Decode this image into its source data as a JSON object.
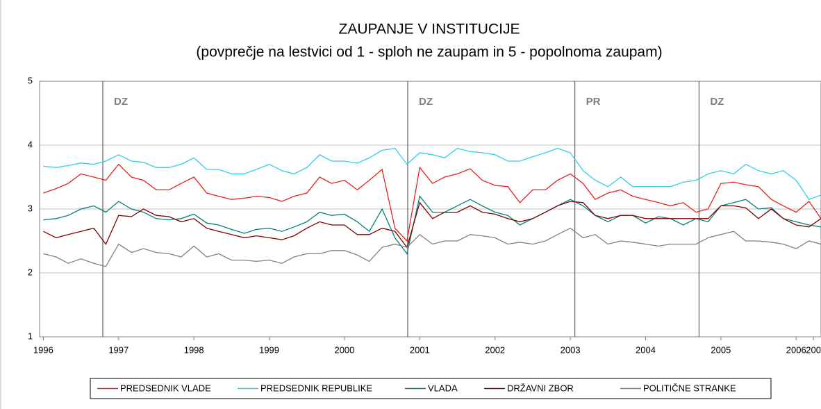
{
  "chart_data": {
    "type": "line",
    "title": "ZAUPANJE V INSTITUCIJE",
    "subtitle": "(povprečje na lestvici od 1 - sploh ne zaupam in 5 - popolnoma zaupam)",
    "x": [
      1996,
      1996.17,
      1996.33,
      1996.5,
      1996.67,
      1996.83,
      1997,
      1997.17,
      1997.33,
      1997.5,
      1997.67,
      1997.83,
      1998,
      1998.17,
      1998.33,
      1998.5,
      1998.67,
      1998.83,
      1999,
      1999.17,
      1999.33,
      1999.5,
      1999.67,
      1999.83,
      2000,
      2000.17,
      2000.33,
      2000.5,
      2000.67,
      2000.83,
      2001,
      2001.17,
      2001.33,
      2001.5,
      2001.67,
      2001.83,
      2002,
      2002.17,
      2002.33,
      2002.5,
      2002.67,
      2002.83,
      2003,
      2003.17,
      2003.33,
      2003.5,
      2003.67,
      2003.83,
      2004,
      2004.17,
      2004.33,
      2004.5,
      2004.67,
      2004.83,
      2005,
      2005.17,
      2005.33,
      2005.5,
      2005.67,
      2005.83,
      2006,
      2006.17,
      2006.33
    ],
    "series": [
      {
        "name": "PREDSEDNIK VLADE",
        "color": "#e8201c",
        "values": [
          3.25,
          3.32,
          3.4,
          3.55,
          3.5,
          3.45,
          3.7,
          3.5,
          3.45,
          3.3,
          3.3,
          3.4,
          3.5,
          3.25,
          3.2,
          3.15,
          3.17,
          3.2,
          3.18,
          3.12,
          3.2,
          3.25,
          3.5,
          3.4,
          3.45,
          3.3,
          3.45,
          3.62,
          2.7,
          2.5,
          3.65,
          3.4,
          3.5,
          3.55,
          3.63,
          3.45,
          3.37,
          3.35,
          3.1,
          3.3,
          3.3,
          3.45,
          3.55,
          3.4,
          3.15,
          3.25,
          3.3,
          3.2,
          3.15,
          3.1,
          3.05,
          3.1,
          2.95,
          3.0,
          3.4,
          3.42,
          3.38,
          3.35,
          3.15,
          3.05,
          2.95,
          3.12,
          2.85
        ]
      },
      {
        "name": "PREDSEDNIK REPUBLIKE",
        "color": "#33ccee",
        "values": [
          3.67,
          3.65,
          3.68,
          3.72,
          3.7,
          3.75,
          3.85,
          3.75,
          3.73,
          3.65,
          3.65,
          3.7,
          3.8,
          3.62,
          3.62,
          3.55,
          3.55,
          3.62,
          3.7,
          3.6,
          3.55,
          3.65,
          3.85,
          3.75,
          3.75,
          3.72,
          3.8,
          3.92,
          3.95,
          3.7,
          3.88,
          3.85,
          3.8,
          3.95,
          3.9,
          3.88,
          3.85,
          3.75,
          3.75,
          3.82,
          3.88,
          3.95,
          3.88,
          3.6,
          3.45,
          3.35,
          3.5,
          3.35,
          3.35,
          3.35,
          3.35,
          3.42,
          3.45,
          3.55,
          3.6,
          3.55,
          3.7,
          3.6,
          3.55,
          3.6,
          3.45,
          3.15,
          3.22
        ]
      },
      {
        "name": "VLADA",
        "color": "#00807a",
        "values": [
          2.83,
          2.85,
          2.9,
          3.0,
          3.05,
          2.95,
          3.12,
          3.0,
          2.95,
          2.85,
          2.83,
          2.85,
          2.92,
          2.78,
          2.75,
          2.68,
          2.62,
          2.68,
          2.7,
          2.65,
          2.72,
          2.8,
          2.95,
          2.9,
          2.92,
          2.8,
          2.65,
          3.0,
          2.55,
          2.3,
          3.2,
          2.95,
          2.95,
          3.05,
          3.15,
          3.05,
          2.95,
          2.9,
          2.75,
          2.85,
          2.95,
          3.05,
          3.15,
          3.05,
          2.9,
          2.8,
          2.9,
          2.9,
          2.78,
          2.88,
          2.85,
          2.75,
          2.85,
          2.8,
          3.05,
          3.1,
          3.15,
          3.0,
          3.02,
          2.85,
          2.8,
          2.75,
          2.72
        ]
      },
      {
        "name": "DRŽAVNI ZBOR",
        "color": "#800000",
        "values": [
          2.65,
          2.55,
          2.6,
          2.65,
          2.7,
          2.45,
          2.9,
          2.88,
          3.0,
          2.9,
          2.88,
          2.8,
          2.85,
          2.7,
          2.65,
          2.6,
          2.55,
          2.58,
          2.55,
          2.52,
          2.58,
          2.7,
          2.8,
          2.75,
          2.75,
          2.6,
          2.6,
          2.7,
          2.65,
          2.4,
          3.1,
          2.85,
          2.95,
          2.95,
          3.05,
          2.95,
          2.92,
          2.85,
          2.8,
          2.85,
          2.95,
          3.05,
          3.12,
          3.1,
          2.9,
          2.85,
          2.9,
          2.9,
          2.85,
          2.85,
          2.85,
          2.85,
          2.85,
          2.85,
          3.05,
          3.05,
          3.02,
          2.85,
          3.0,
          2.85,
          2.75,
          2.72,
          2.85
        ]
      },
      {
        "name": "POLITIČNE STRANKE",
        "color": "#808080",
        "values": [
          2.3,
          2.25,
          2.15,
          2.22,
          2.15,
          2.1,
          2.45,
          2.32,
          2.38,
          2.32,
          2.3,
          2.25,
          2.42,
          2.25,
          2.3,
          2.2,
          2.2,
          2.18,
          2.2,
          2.15,
          2.25,
          2.3,
          2.3,
          2.35,
          2.35,
          2.28,
          2.18,
          2.4,
          2.45,
          2.4,
          2.6,
          2.45,
          2.5,
          2.5,
          2.6,
          2.58,
          2.55,
          2.45,
          2.48,
          2.45,
          2.5,
          2.6,
          2.7,
          2.55,
          2.6,
          2.45,
          2.5,
          2.48,
          2.45,
          2.42,
          2.45,
          2.45,
          2.45,
          2.55,
          2.6,
          2.65,
          2.5,
          2.5,
          2.48,
          2.45,
          2.38,
          2.5,
          2.45
        ]
      }
    ],
    "events": [
      {
        "x": 1996.79,
        "label": "DZ"
      },
      {
        "x": 2000.84,
        "label": "DZ"
      },
      {
        "x": 2003.06,
        "label": "PR"
      },
      {
        "x": 2004.71,
        "label": "DZ"
      }
    ],
    "xlim": [
      1995.95,
      2006.33
    ],
    "xticks": [
      1996,
      1997,
      1998,
      1999,
      2000,
      2001,
      2002,
      2003,
      2004,
      2005,
      2006,
      {
        "value": 2006.23,
        "label": "200"
      }
    ],
    "ylim": [
      1,
      5
    ],
    "yticks": [
      1,
      2,
      3,
      4,
      5
    ],
    "grid": true,
    "legend": "bottom"
  }
}
